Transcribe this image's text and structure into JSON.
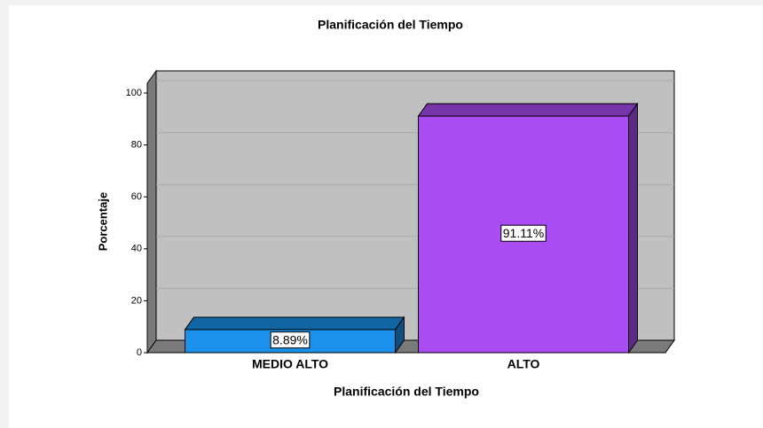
{
  "chart_data": {
    "type": "bar3d",
    "title": "Planificación del Tiempo",
    "x_label": "Planificación del Tiempo",
    "y_label": "Porcentaje",
    "categories": [
      "MEDIO ALTO",
      "ALTO"
    ],
    "values": [
      8.89,
      91.11
    ],
    "value_labels": [
      "8.89%",
      "91.11%"
    ],
    "colors": [
      "#1a91ea",
      "#a94cf3"
    ],
    "ylim": [
      0,
      100
    ],
    "yticks": [
      0,
      20,
      40,
      60,
      80,
      100
    ],
    "grid": true
  }
}
